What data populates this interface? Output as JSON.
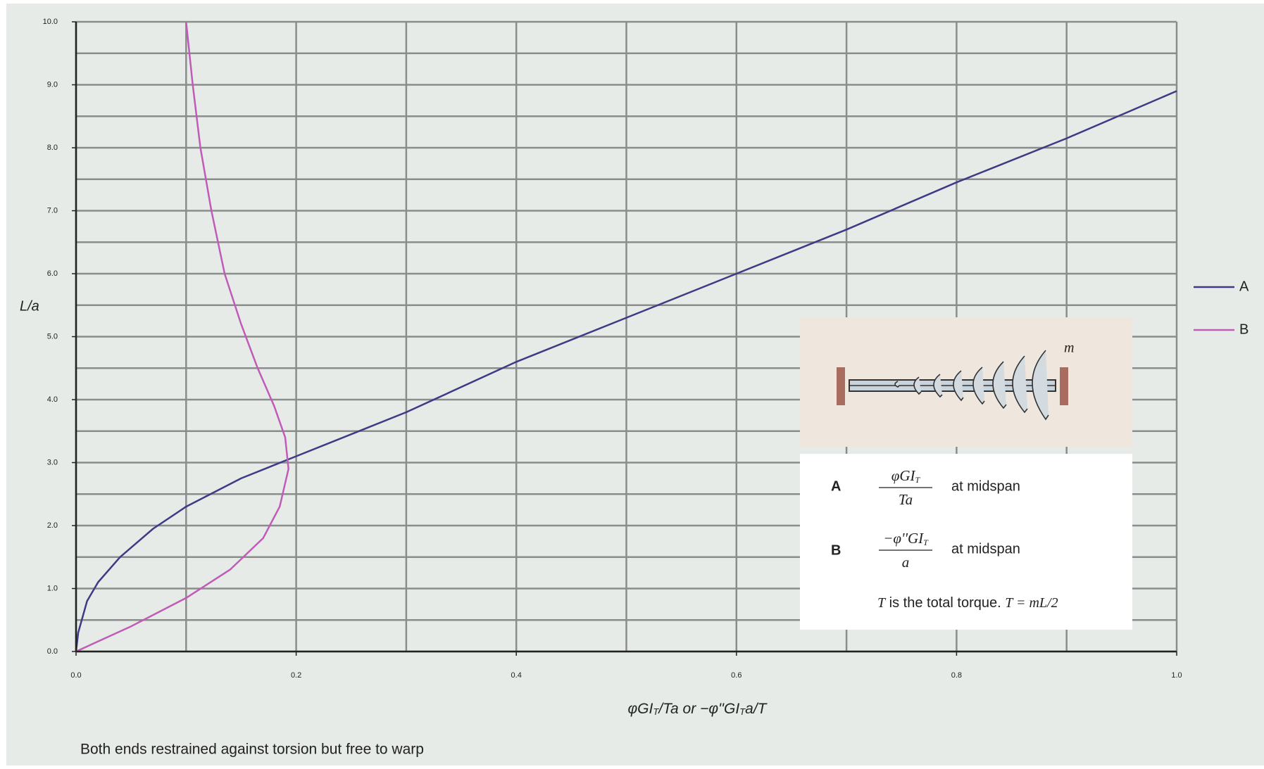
{
  "chart_data": {
    "type": "line",
    "ylabel": "L/a",
    "xlabel_parts": [
      "φGI",
      "T",
      "/Ta  or  −φ''GI",
      "T",
      "a/T"
    ],
    "xlim": [
      0,
      1
    ],
    "ylim": [
      0,
      10
    ],
    "xticks": [
      {
        "value": 0,
        "label": "0.0"
      },
      {
        "value": 0.2,
        "label": "0.2"
      },
      {
        "value": 0.4,
        "label": "0.4"
      },
      {
        "value": 0.6,
        "label": "0.6"
      },
      {
        "value": 0.8,
        "label": "0.8"
      },
      {
        "value": 1,
        "label": "1.0"
      }
    ],
    "xminor": [
      0.1,
      0.3,
      0.5,
      0.7,
      0.9
    ],
    "yticks": [
      {
        "value": 0,
        "label": "0.0"
      },
      {
        "value": 1,
        "label": "1.0"
      },
      {
        "value": 2,
        "label": "2.0"
      },
      {
        "value": 3,
        "label": "3.0"
      },
      {
        "value": 4,
        "label": "4.0"
      },
      {
        "value": 5,
        "label": "5.0"
      },
      {
        "value": 6,
        "label": "6.0"
      },
      {
        "value": 7,
        "label": "7.0"
      },
      {
        "value": 8,
        "label": "8.0"
      },
      {
        "value": 9,
        "label": "9.0"
      },
      {
        "value": 10,
        "label": "10.0"
      }
    ],
    "yminor": [
      0.5,
      1.5,
      2.5,
      3.5,
      4.5,
      5.5,
      6.5,
      7.5,
      8.5,
      9.5
    ],
    "grid": true,
    "legend": "right",
    "series": [
      {
        "name": "A",
        "color": "#3d3b85",
        "x": [
          0,
          0.002,
          0.01,
          0.02,
          0.04,
          0.07,
          0.1,
          0.15,
          0.2,
          0.3,
          0.4,
          0.5,
          0.6,
          0.7,
          0.8,
          0.9,
          1.0
        ],
        "values": [
          0,
          0.3,
          0.8,
          1.1,
          1.5,
          1.95,
          2.3,
          2.75,
          3.1,
          3.8,
          4.6,
          5.3,
          6.0,
          6.7,
          7.45,
          8.15,
          8.9
        ]
      },
      {
        "name": "B",
        "color": "#c05cb8",
        "x": [
          0,
          0.05,
          0.1,
          0.14,
          0.17,
          0.185,
          0.193,
          0.19,
          0.18,
          0.165,
          0.15,
          0.135,
          0.123,
          0.113,
          0.106,
          0.1
        ],
        "values": [
          0,
          0.4,
          0.85,
          1.3,
          1.8,
          2.3,
          2.9,
          3.4,
          3.9,
          4.5,
          5.2,
          6.0,
          7.0,
          8.0,
          9.0,
          10.0
        ]
      }
    ],
    "inset": {
      "diagram_label": "m",
      "rows": [
        {
          "label": "A",
          "numerator": "φGI",
          "numerator_sub": "T",
          "denominator": "Ta",
          "note": "at midspan"
        },
        {
          "label": "B",
          "numerator": "−φ''GI",
          "numerator_sub": "T",
          "denominator": "a",
          "note": "at midspan"
        }
      ],
      "footnote_var": "T",
      "footnote": " is the total torque. ",
      "footnote_eq": "T = mL/2"
    },
    "caption": "Both ends restrained against torsion but free to warp"
  }
}
